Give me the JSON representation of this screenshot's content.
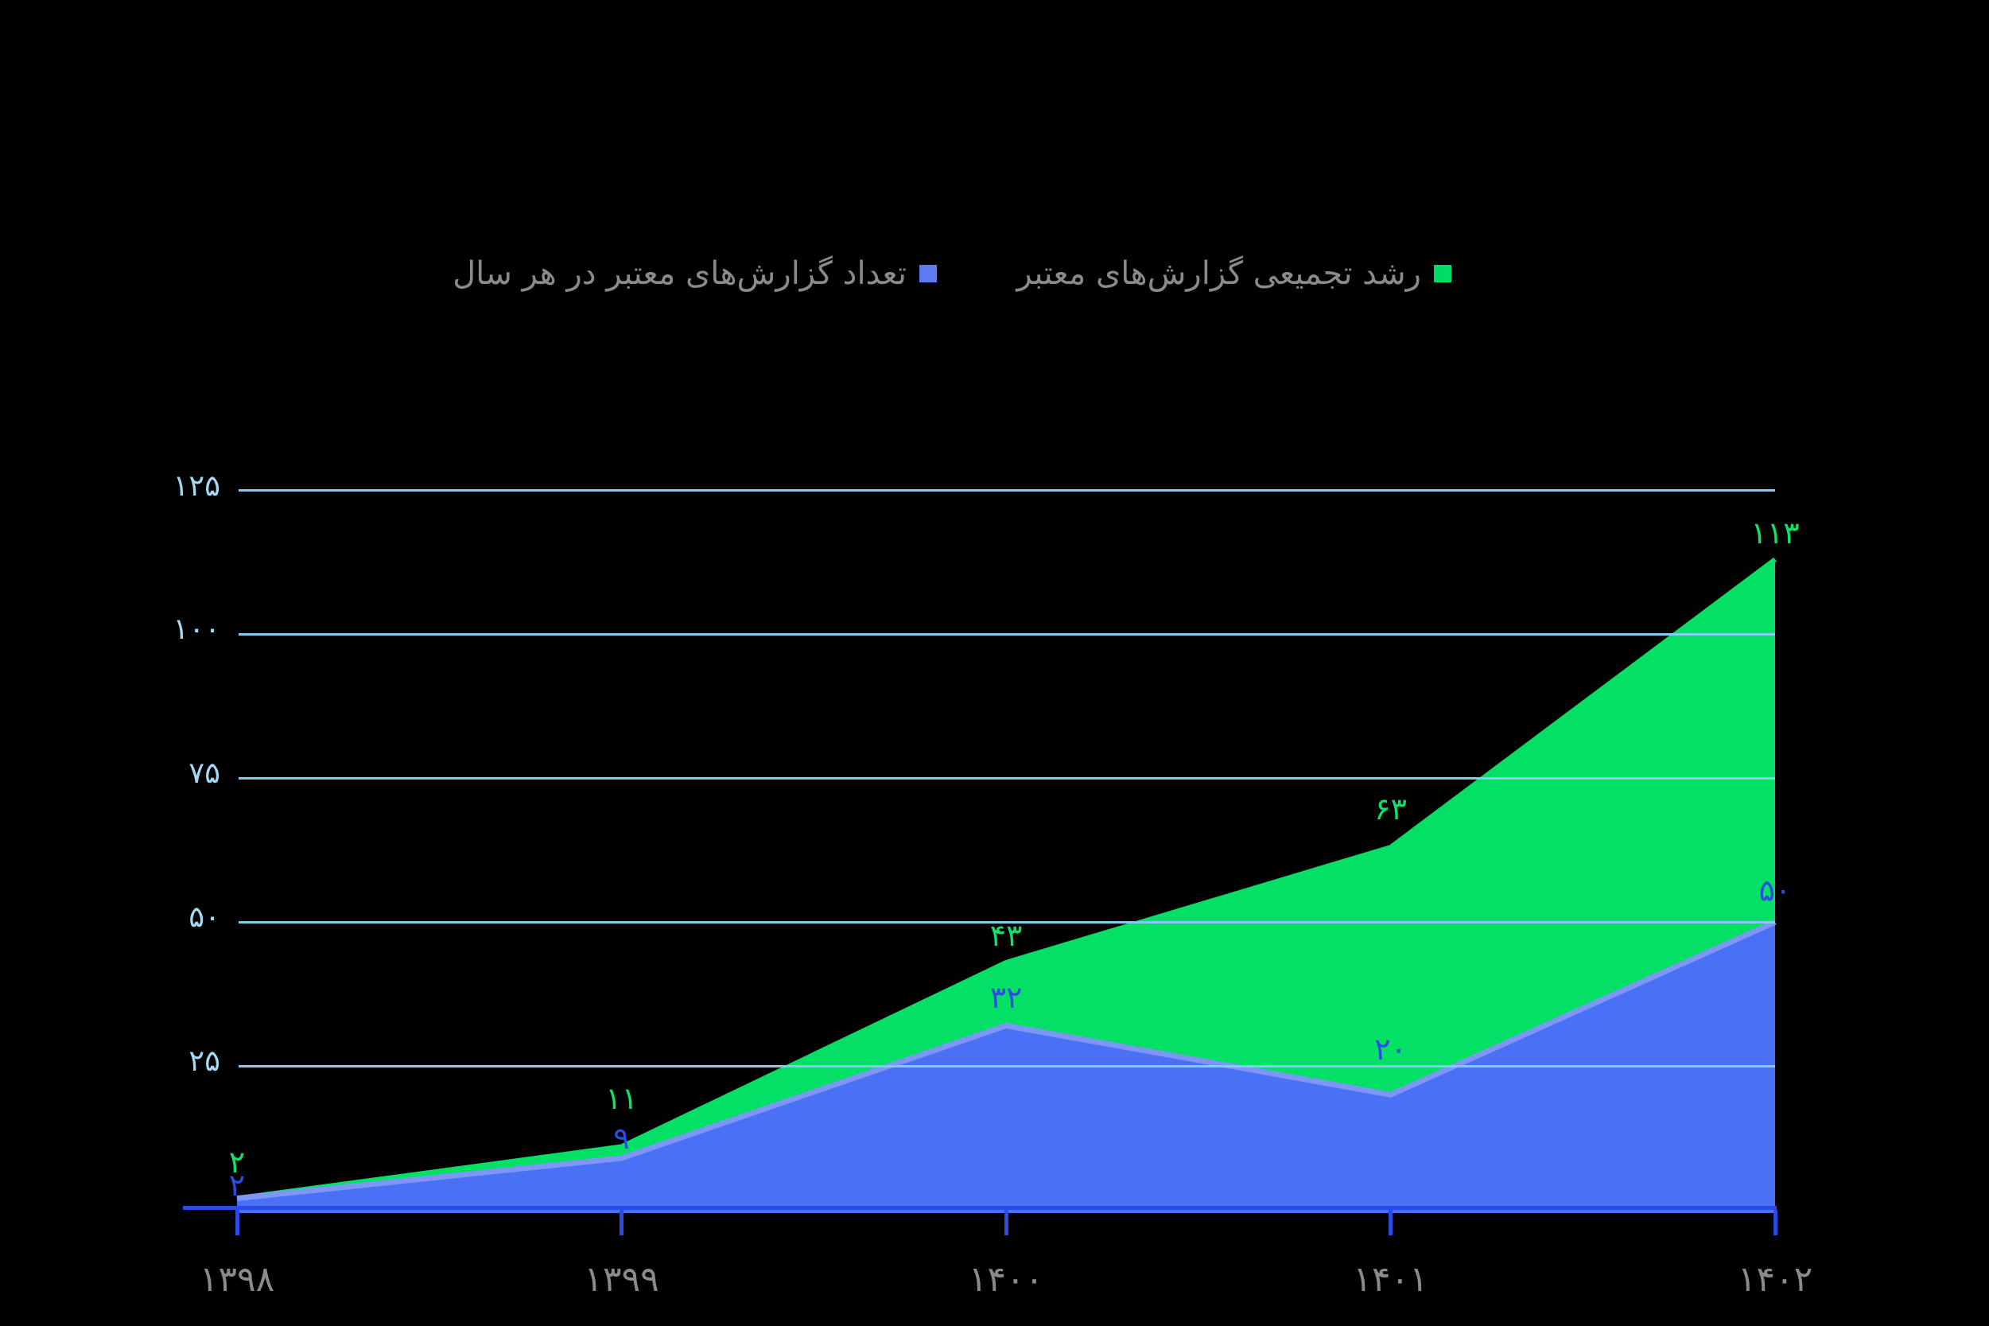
{
  "background_color": "#000000",
  "legend": {
    "text_color": "#8A8A8A",
    "items": [
      {
        "id": "cumulative",
        "label": "رشد تجمیعی گزارش‌های معتبر",
        "swatch_color": "#00DD64"
      },
      {
        "id": "yearly",
        "label": "تعداد گزارش‌های معتبر در هر سال",
        "swatch_color": "#5C7BF2"
      }
    ]
  },
  "chart_data": {
    "type": "area",
    "title": "",
    "legend_position": "top",
    "categories": [
      "۱۳۹۸",
      "۱۳۹۹",
      "۱۴۰۰",
      "۱۴۰۱",
      "۱۴۰۲"
    ],
    "series": [
      {
        "name": "رشد تجمیعی گزارش‌های معتبر",
        "values": [
          2,
          11,
          43,
          63,
          113
        ],
        "point_labels": [
          "۲",
          "۱۱",
          "۴۳",
          "۶۳",
          "۱۱۳"
        ],
        "fill_color": "#04E065",
        "line_color": "#04E065",
        "label_color": "#0FE26A"
      },
      {
        "name": "تعداد گزارش‌های معتبر در هر سال",
        "values": [
          2,
          9,
          32,
          20,
          50
        ],
        "point_labels": [
          "۲",
          "۹",
          "۳۲",
          "۲۰",
          "۵۰"
        ],
        "fill_color": "#4A70F6",
        "line_color": "#7E96F8",
        "label_color": "#2B4CE4"
      }
    ],
    "y_axis": {
      "range": [
        0,
        125
      ],
      "tick_values": [
        25,
        50,
        75,
        100,
        125
      ],
      "tick_labels": [
        "۲۵",
        "۵۰",
        "۷۵",
        "۱۰۰",
        "۱۲۵"
      ],
      "grid": true,
      "gridline_color": "#85CAEF",
      "label_color": "#A5D8F2"
    },
    "x_axis": {
      "axis_line_color": "#2B4CE4",
      "tick_color": "#2B4CE4",
      "label_color": "#8A8A8A"
    }
  }
}
